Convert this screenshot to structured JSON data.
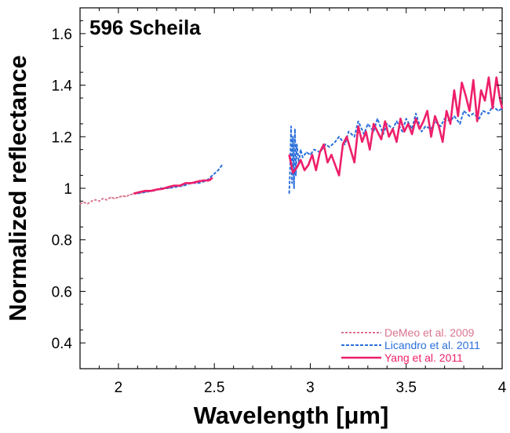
{
  "chart_data": {
    "type": "line",
    "title": "596 Scheila",
    "xlabel": "Wavelength [μm]",
    "ylabel": "Normalized reflectance",
    "xlim": [
      1.8,
      4.0
    ],
    "ylim": [
      0.3,
      1.7
    ],
    "xticks": [
      2,
      2.5,
      3,
      3.5,
      4
    ],
    "xtick_labels": [
      "2",
      "2.5",
      "3",
      "3.5",
      "4"
    ],
    "yticks": [
      0.4,
      0.6,
      0.8,
      1.0,
      1.2,
      1.4,
      1.6
    ],
    "ytick_labels": [
      "0.4",
      "0.6",
      "0.8",
      "1",
      "1.2",
      "1.4",
      "1.6"
    ],
    "grid": false,
    "legend_position": "bottom-right",
    "series": [
      {
        "name": "DeMeo et al. 2009",
        "color": "#d9748e",
        "style": "dotted",
        "x": [
          1.8,
          1.82,
          1.84,
          1.86,
          1.88,
          1.9,
          1.92,
          1.94,
          1.96,
          1.98,
          2.0,
          2.02,
          2.04,
          2.06,
          2.08,
          2.1,
          2.12,
          2.14,
          2.16,
          2.18,
          2.2,
          2.22,
          2.24,
          2.26,
          2.28,
          2.3,
          2.32,
          2.34,
          2.36,
          2.38,
          2.4,
          2.42,
          2.44,
          2.46,
          2.48
        ],
        "y": [
          0.94,
          0.945,
          0.94,
          0.95,
          0.955,
          0.95,
          0.96,
          0.955,
          0.965,
          0.96,
          0.965,
          0.97,
          0.968,
          0.975,
          0.978,
          0.98,
          0.982,
          0.985,
          0.99,
          0.988,
          0.995,
          0.995,
          1.0,
          1.0,
          1.005,
          1.01,
          1.01,
          1.015,
          1.02,
          1.02,
          1.025,
          1.03,
          1.025,
          1.03,
          1.03
        ]
      },
      {
        "name": "Licandro et al. 2011",
        "color": "#2a6fdb",
        "style": "dashed",
        "x": [
          2.1,
          2.14,
          2.18,
          2.22,
          2.26,
          2.3,
          2.34,
          2.38,
          2.42,
          2.46,
          2.49,
          2.52,
          2.54,
          2.89,
          2.895,
          2.9,
          2.905,
          2.91,
          2.915,
          2.92,
          2.925,
          2.93,
          2.94,
          2.95,
          2.96,
          2.98,
          3.0,
          3.02,
          3.05,
          3.08,
          3.1,
          3.13,
          3.15,
          3.18,
          3.2,
          3.23,
          3.25,
          3.28,
          3.3,
          3.33,
          3.35,
          3.38,
          3.4,
          3.43,
          3.45,
          3.48,
          3.5,
          3.53,
          3.55,
          3.58,
          3.6,
          3.63,
          3.65,
          3.68,
          3.7,
          3.73,
          3.75,
          3.78,
          3.8,
          3.83,
          3.85,
          3.88,
          3.9,
          3.93,
          3.95,
          3.98,
          4.0
        ],
        "y": [
          0.98,
          0.985,
          0.99,
          1.0,
          1.0,
          1.005,
          1.01,
          1.02,
          1.02,
          1.03,
          1.05,
          1.07,
          1.09,
          0.98,
          1.08,
          1.24,
          1.02,
          1.2,
          1.0,
          1.23,
          1.05,
          1.17,
          1.1,
          1.15,
          1.12,
          1.14,
          1.13,
          1.15,
          1.14,
          1.17,
          1.16,
          1.18,
          1.2,
          1.17,
          1.22,
          1.2,
          1.26,
          1.21,
          1.25,
          1.22,
          1.27,
          1.21,
          1.25,
          1.23,
          1.26,
          1.22,
          1.27,
          1.23,
          1.29,
          1.22,
          1.24,
          1.23,
          1.26,
          1.24,
          1.27,
          1.26,
          1.28,
          1.25,
          1.3,
          1.28,
          1.29,
          1.27,
          1.3,
          1.29,
          1.32,
          1.3,
          1.31
        ]
      },
      {
        "name": "Yang et al. 2011",
        "color": "#ee1f6a",
        "style": "solid",
        "x": [
          2.08,
          2.11,
          2.14,
          2.17,
          2.2,
          2.23,
          2.26,
          2.29,
          2.32,
          2.35,
          2.38,
          2.41,
          2.44,
          2.47,
          2.49,
          2.89,
          2.91,
          2.93,
          2.95,
          2.97,
          2.99,
          3.01,
          3.03,
          3.05,
          3.07,
          3.09,
          3.11,
          3.13,
          3.15,
          3.17,
          3.19,
          3.21,
          3.23,
          3.25,
          3.27,
          3.29,
          3.31,
          3.33,
          3.35,
          3.37,
          3.39,
          3.41,
          3.43,
          3.45,
          3.47,
          3.49,
          3.51,
          3.53,
          3.55,
          3.57,
          3.59,
          3.61,
          3.63,
          3.65,
          3.67,
          3.69,
          3.71,
          3.73,
          3.75,
          3.77,
          3.79,
          3.81,
          3.83,
          3.85,
          3.87,
          3.89,
          3.91,
          3.93,
          3.95,
          3.97,
          3.99,
          4.0
        ],
        "y": [
          0.98,
          0.985,
          0.99,
          0.99,
          0.995,
          0.998,
          1.005,
          1.01,
          1.01,
          1.02,
          1.02,
          1.025,
          1.03,
          1.03,
          1.04,
          1.13,
          1.06,
          1.08,
          1.11,
          1.07,
          1.09,
          1.13,
          1.07,
          1.14,
          1.17,
          1.1,
          1.13,
          1.09,
          1.05,
          1.17,
          1.2,
          1.15,
          1.1,
          1.24,
          1.18,
          1.22,
          1.15,
          1.25,
          1.22,
          1.19,
          1.26,
          1.2,
          1.23,
          1.18,
          1.27,
          1.22,
          1.25,
          1.21,
          1.27,
          1.23,
          1.26,
          1.3,
          1.2,
          1.28,
          1.24,
          1.18,
          1.3,
          1.25,
          1.38,
          1.28,
          1.41,
          1.36,
          1.3,
          1.42,
          1.26,
          1.38,
          1.34,
          1.43,
          1.31,
          1.43,
          1.34,
          1.31
        ]
      }
    ]
  }
}
